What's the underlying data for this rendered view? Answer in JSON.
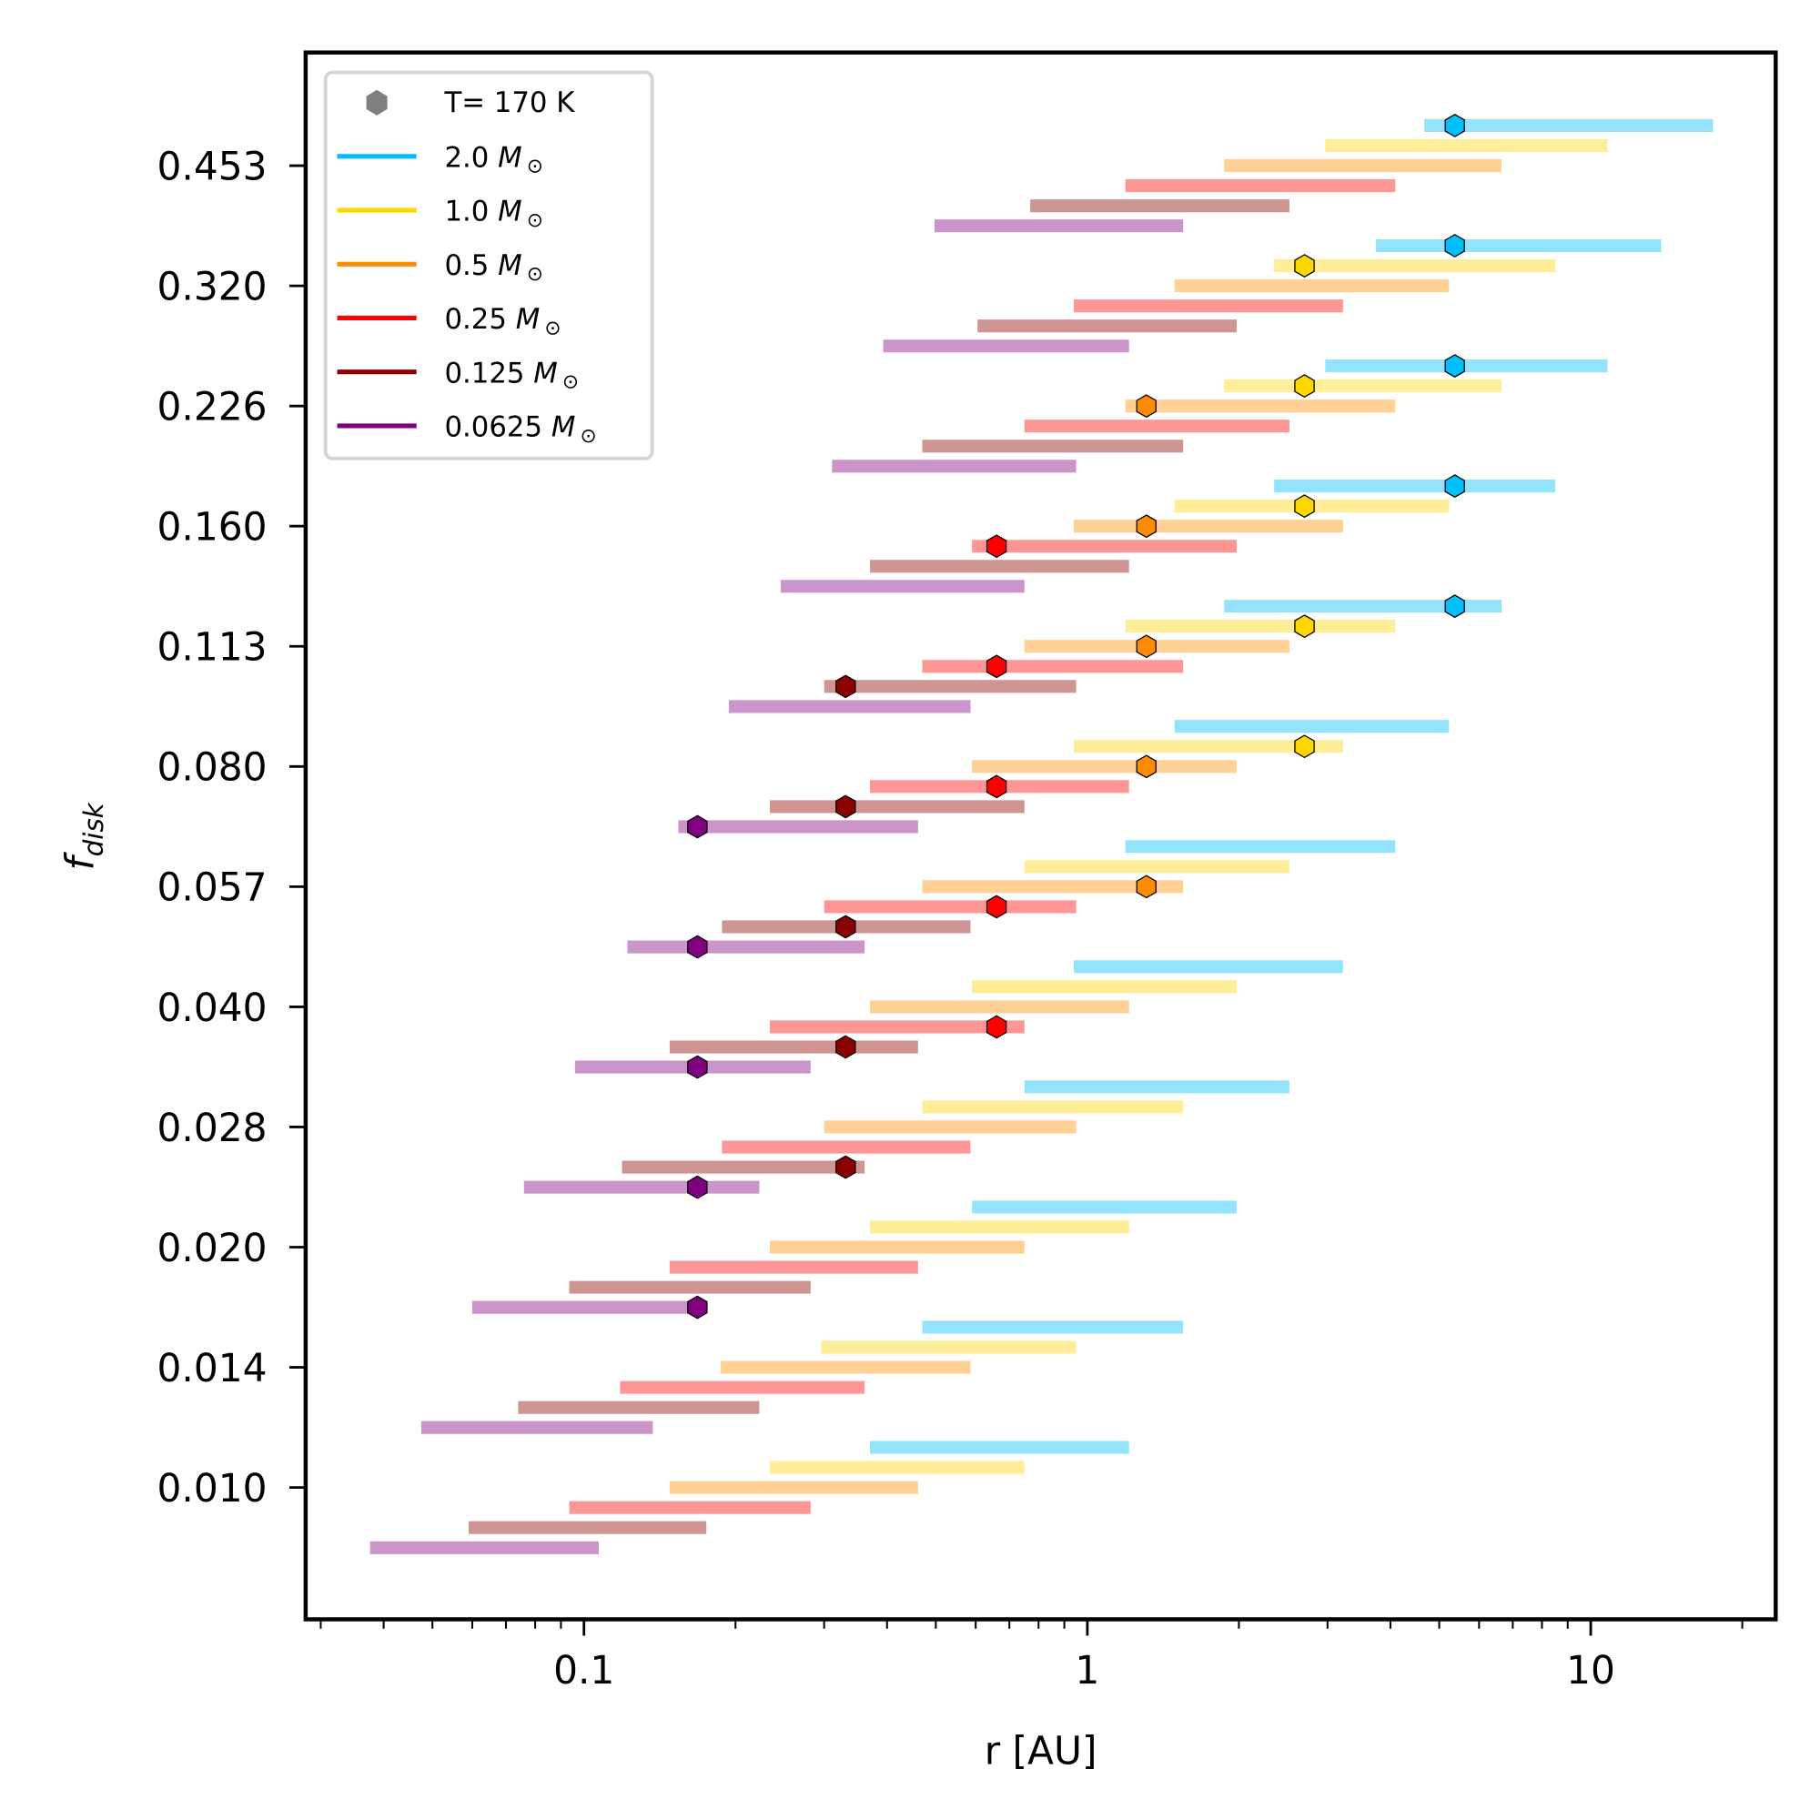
{
  "chart_data": {
    "type": "bar",
    "subtype": "horizontal-range",
    "title": "",
    "xlabel": "r [AU]",
    "ylabel": "f_disk",
    "ylabel_main": "f",
    "ylabel_sub": "disk",
    "xscale": "log",
    "xlim": [
      0.028,
      23.3
    ],
    "x_ticks": [
      {
        "value": 0.1,
        "label": "0.1"
      },
      {
        "value": 1,
        "label": "1"
      },
      {
        "value": 10,
        "label": "10"
      }
    ],
    "x_minor_ticks": [
      0.03,
      0.04,
      0.05,
      0.06,
      0.07,
      0.08,
      0.09,
      0.2,
      0.3,
      0.4,
      0.5,
      0.6,
      0.7,
      0.8,
      0.9,
      2,
      3,
      4,
      5,
      6,
      7,
      8,
      9,
      20
    ],
    "categories": [
      "0.453",
      "0.320",
      "0.226",
      "0.160",
      "0.113",
      "0.080",
      "0.057",
      "0.040",
      "0.028",
      "0.020",
      "0.014",
      "0.010"
    ],
    "grid": false,
    "legend_position": "top-left",
    "legend": {
      "marker_label": "T= 170 K",
      "marker_color": "#808080",
      "entries": [
        {
          "mass": "2.0",
          "unit": "M",
          "sub": "⊙"
        },
        {
          "mass": "1.0",
          "unit": "M",
          "sub": "⊙"
        },
        {
          "mass": "0.5",
          "unit": "M",
          "sub": "⊙"
        },
        {
          "mass": "0.25",
          "unit": "M",
          "sub": "⊙"
        },
        {
          "mass": "0.125",
          "unit": "M",
          "sub": "⊙"
        },
        {
          "mass": "0.0625",
          "unit": "M",
          "sub": "⊙"
        }
      ]
    },
    "series": [
      {
        "name": "2.0 M_sun",
        "color": "#00bfff",
        "bar_color": "#93e3fc",
        "ranges": [
          [
            4.67,
            17.5
          ],
          [
            3.74,
            13.8
          ],
          [
            2.97,
            10.8
          ],
          [
            2.35,
            8.5
          ],
          [
            1.87,
            6.65
          ],
          [
            1.49,
            5.23
          ],
          [
            1.19,
            4.09
          ],
          [
            0.94,
            3.22
          ],
          [
            0.75,
            2.52
          ],
          [
            0.59,
            1.98
          ],
          [
            0.47,
            1.55
          ],
          [
            0.37,
            1.21
          ]
        ],
        "markers": [
          5.37,
          5.37,
          5.37,
          5.37,
          5.37,
          null,
          null,
          null,
          null,
          null,
          null,
          null
        ]
      },
      {
        "name": "1.0 M_sun",
        "color": "#ffd700",
        "bar_color": "#ffed97",
        "ranges": [
          [
            2.97,
            10.8
          ],
          [
            2.35,
            8.5
          ],
          [
            1.87,
            6.65
          ],
          [
            1.49,
            5.23
          ],
          [
            1.19,
            4.09
          ],
          [
            0.94,
            3.22
          ],
          [
            0.75,
            2.52
          ],
          [
            0.59,
            1.98
          ],
          [
            0.47,
            1.55
          ],
          [
            0.37,
            1.21
          ],
          [
            0.296,
            0.95
          ],
          [
            0.234,
            0.75
          ]
        ],
        "markers": [
          null,
          2.7,
          2.7,
          2.7,
          2.7,
          2.7,
          null,
          null,
          null,
          null,
          null,
          null
        ]
      },
      {
        "name": "0.5 M_sun",
        "color": "#ff8c00",
        "bar_color": "#ffd195",
        "ranges": [
          [
            1.87,
            6.65
          ],
          [
            1.49,
            5.23
          ],
          [
            1.19,
            4.09
          ],
          [
            0.94,
            3.22
          ],
          [
            0.75,
            2.52
          ],
          [
            0.59,
            1.98
          ],
          [
            0.47,
            1.55
          ],
          [
            0.37,
            1.21
          ],
          [
            0.3,
            0.95
          ],
          [
            0.234,
            0.75
          ],
          [
            0.187,
            0.586
          ],
          [
            0.148,
            0.461
          ]
        ],
        "markers": [
          null,
          null,
          1.31,
          1.31,
          1.31,
          1.31,
          1.31,
          null,
          null,
          null,
          null,
          null
        ]
      },
      {
        "name": "0.25 M_sun",
        "color": "#ff0000",
        "bar_color": "#ff9696",
        "ranges": [
          [
            1.19,
            4.09
          ],
          [
            0.94,
            3.22
          ],
          [
            0.75,
            2.52
          ],
          [
            0.59,
            1.98
          ],
          [
            0.47,
            1.55
          ],
          [
            0.37,
            1.21
          ],
          [
            0.3,
            0.95
          ],
          [
            0.234,
            0.75
          ],
          [
            0.188,
            0.586
          ],
          [
            0.148,
            0.461
          ],
          [
            0.118,
            0.361
          ],
          [
            0.0935,
            0.282
          ]
        ],
        "markers": [
          null,
          null,
          null,
          0.66,
          0.66,
          0.66,
          0.66,
          0.66,
          null,
          null,
          null,
          null
        ]
      },
      {
        "name": "0.125 M_sun",
        "color": "#8b0000",
        "bar_color": "#ce9593",
        "ranges": [
          [
            0.77,
            2.52
          ],
          [
            0.605,
            1.98
          ],
          [
            0.47,
            1.55
          ],
          [
            0.37,
            1.21
          ],
          [
            0.3,
            0.95
          ],
          [
            0.234,
            0.75
          ],
          [
            0.188,
            0.586
          ],
          [
            0.148,
            0.461
          ],
          [
            0.119,
            0.361
          ],
          [
            0.0935,
            0.282
          ],
          [
            0.074,
            0.223
          ],
          [
            0.059,
            0.175
          ]
        ],
        "markers": [
          null,
          null,
          null,
          null,
          0.331,
          0.331,
          0.331,
          0.331,
          0.331,
          null,
          null,
          null
        ]
      },
      {
        "name": "0.0625 M_sun",
        "color": "#800080",
        "bar_color": "#cb94cb",
        "ranges": [
          [
            0.497,
            1.55
          ],
          [
            0.393,
            1.21
          ],
          [
            0.311,
            0.95
          ],
          [
            0.246,
            0.75
          ],
          [
            0.194,
            0.586
          ],
          [
            0.154,
            0.461
          ],
          [
            0.122,
            0.361
          ],
          [
            0.096,
            0.282
          ],
          [
            0.076,
            0.223
          ],
          [
            0.06,
            0.168
          ],
          [
            0.0475,
            0.137
          ],
          [
            0.0376,
            0.107
          ]
        ],
        "markers": [
          null,
          null,
          null,
          null,
          null,
          0.168,
          0.168,
          0.168,
          0.168,
          0.168,
          null,
          null
        ]
      }
    ]
  }
}
